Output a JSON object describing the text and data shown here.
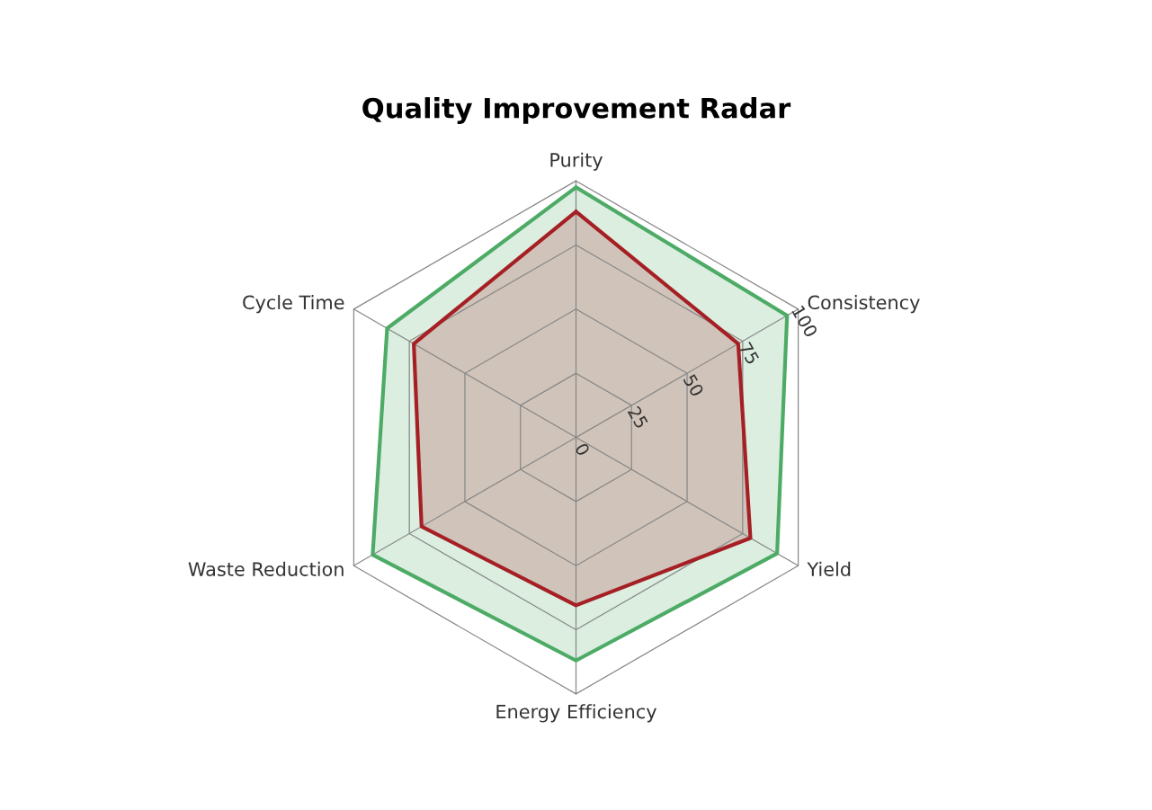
{
  "chart_data": {
    "type": "radar",
    "title": "Quality Improvement Radar",
    "categories": [
      "Purity",
      "Consistency",
      "Yield",
      "Energy Efficiency",
      "Waste Reduction",
      "Cycle Time"
    ],
    "series": [
      {
        "color": "#4dab66",
        "values": [
          97.5,
          95,
          90.5,
          87,
          91.5,
          85
        ]
      },
      {
        "color": "#a51f24",
        "values": [
          88,
          73,
          78.5,
          65.5,
          69.5,
          73
        ]
      }
    ],
    "ylim": [
      0,
      100
    ],
    "yticks": [
      0,
      25,
      50,
      75,
      100
    ],
    "grid": true
  }
}
